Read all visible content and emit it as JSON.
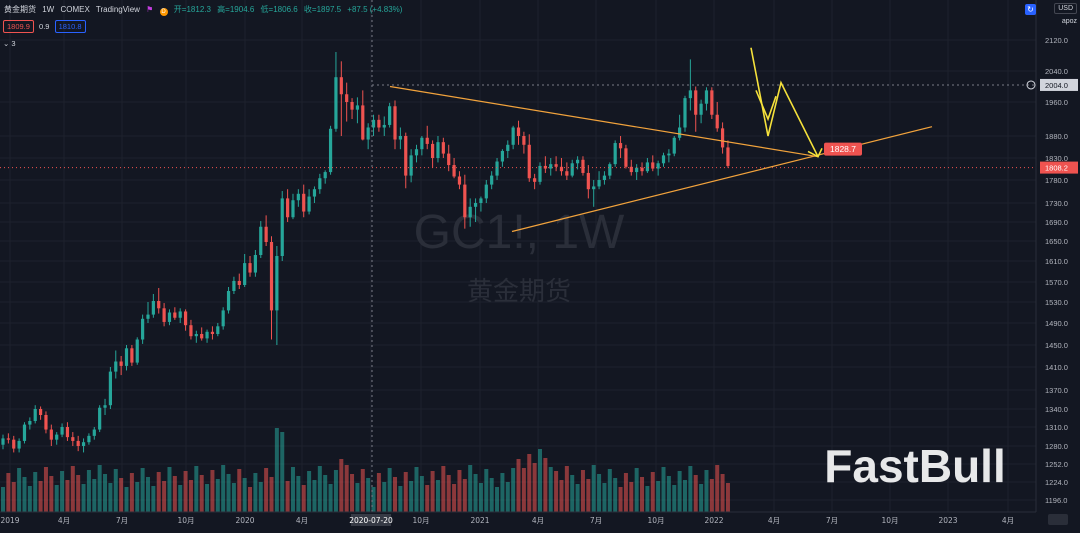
{
  "header": {
    "symbol": "黄金期货",
    "interval": "1W",
    "exchange": "COMEX",
    "source": "TradingView",
    "open_label": "开=1812.3",
    "high_label": "高=1904.6",
    "low_label": "低=1806.6",
    "close_label": "收=1897.5",
    "change_label": "+87.5 (+4.83%)",
    "bid": "1809.9",
    "spread": "0.9",
    "ask": "1810.8",
    "indicator_count": "3"
  },
  "top_right": {
    "currency": "USD",
    "scale_mode": "apoz"
  },
  "watermark": {
    "ticker": "GC1!, 1W",
    "name": "黄金期货"
  },
  "logo": "FastBull",
  "colors": {
    "background": "#131722",
    "up": "#26a69a",
    "down": "#ef5350",
    "trendline": "#f2a33c",
    "arrow": "#f5e13b",
    "axis_text": "#b2b5be"
  },
  "chart_data": {
    "type": "candlestick",
    "title": "",
    "price_axis_ticks": [
      2120.0,
      2040.0,
      1960.0,
      1880.0,
      1830.0,
      1780.0,
      1730.0,
      1690.0,
      1650.0,
      1610.0,
      1570.0,
      1530.0,
      1490.0,
      1450.0,
      1410.0,
      1370.0,
      1340.0,
      1310.0,
      1280.0,
      1252.0,
      1224.0,
      1196.0
    ],
    "price_axis_ticks_text": [
      "2120.0",
      "2040.0",
      "1960.0",
      "1880.0",
      "1830.0",
      "1780.0",
      "1730.0",
      "1690.0",
      "1650.0",
      "1610.0",
      "1570.0",
      "1530.0",
      "1490.0",
      "1450.0",
      "1410.0",
      "1370.0",
      "1340.0",
      "1310.0",
      "1280.0",
      "1252.0",
      "1224.0",
      "1196.0"
    ],
    "time_axis_labels": [
      "2019",
      "4月",
      "7月",
      "10月",
      "2020",
      "4月",
      "2020-07-20",
      "10月",
      "2021",
      "4月",
      "7月",
      "10月",
      "2022",
      "4月",
      "7月",
      "10月",
      "2023",
      "4月"
    ],
    "crosshair_date": "2020-07-20",
    "price_labels": {
      "dotted_line": "2004.0",
      "last_price": "1808.2",
      "target": "1828.7"
    },
    "ohlc_weekly_approx": [
      [
        1282,
        1298,
        1275,
        1292
      ],
      [
        1292,
        1300,
        1284,
        1290
      ],
      [
        1290,
        1296,
        1270,
        1276
      ],
      [
        1276,
        1292,
        1270,
        1288
      ],
      [
        1288,
        1318,
        1284,
        1314
      ],
      [
        1314,
        1326,
        1306,
        1320
      ],
      [
        1320,
        1346,
        1316,
        1340
      ],
      [
        1340,
        1344,
        1322,
        1330
      ],
      [
        1330,
        1336,
        1300,
        1306
      ],
      [
        1306,
        1314,
        1280,
        1290
      ],
      [
        1290,
        1302,
        1282,
        1298
      ],
      [
        1298,
        1316,
        1294,
        1310
      ],
      [
        1310,
        1318,
        1288,
        1294
      ],
      [
        1294,
        1302,
        1280,
        1288
      ],
      [
        1288,
        1296,
        1272,
        1280
      ],
      [
        1280,
        1292,
        1270,
        1286
      ],
      [
        1286,
        1300,
        1282,
        1296
      ],
      [
        1296,
        1310,
        1290,
        1306
      ],
      [
        1306,
        1346,
        1302,
        1342
      ],
      [
        1342,
        1356,
        1330,
        1346
      ],
      [
        1346,
        1410,
        1340,
        1402
      ],
      [
        1402,
        1440,
        1390,
        1420
      ],
      [
        1420,
        1430,
        1396,
        1412
      ],
      [
        1412,
        1450,
        1404,
        1444
      ],
      [
        1444,
        1450,
        1412,
        1418
      ],
      [
        1418,
        1464,
        1414,
        1460
      ],
      [
        1460,
        1506,
        1452,
        1498
      ],
      [
        1498,
        1530,
        1490,
        1506
      ],
      [
        1506,
        1546,
        1500,
        1532
      ],
      [
        1532,
        1558,
        1508,
        1518
      ],
      [
        1518,
        1528,
        1484,
        1492
      ],
      [
        1492,
        1516,
        1486,
        1510
      ],
      [
        1510,
        1520,
        1496,
        1500
      ],
      [
        1500,
        1518,
        1490,
        1512
      ],
      [
        1512,
        1516,
        1476,
        1486
      ],
      [
        1486,
        1496,
        1460,
        1466
      ],
      [
        1466,
        1476,
        1454,
        1470
      ],
      [
        1470,
        1482,
        1458,
        1462
      ],
      [
        1462,
        1478,
        1454,
        1474
      ],
      [
        1474,
        1484,
        1460,
        1470
      ],
      [
        1470,
        1490,
        1466,
        1484
      ],
      [
        1484,
        1520,
        1478,
        1514
      ],
      [
        1514,
        1560,
        1508,
        1552
      ],
      [
        1552,
        1580,
        1546,
        1572
      ],
      [
        1572,
        1586,
        1556,
        1564
      ],
      [
        1564,
        1624,
        1560,
        1606
      ],
      [
        1606,
        1620,
        1580,
        1588
      ],
      [
        1588,
        1632,
        1580,
        1622
      ],
      [
        1622,
        1692,
        1616,
        1680
      ],
      [
        1680,
        1704,
        1640,
        1648
      ],
      [
        1648,
        1660,
        1460,
        1514
      ],
      [
        1514,
        1640,
        1450,
        1620
      ],
      [
        1620,
        1756,
        1610,
        1740
      ],
      [
        1740,
        1760,
        1690,
        1700
      ],
      [
        1700,
        1750,
        1696,
        1736
      ],
      [
        1736,
        1760,
        1722,
        1750
      ],
      [
        1750,
        1770,
        1700,
        1712
      ],
      [
        1712,
        1760,
        1706,
        1744
      ],
      [
        1744,
        1766,
        1730,
        1760
      ],
      [
        1760,
        1794,
        1750,
        1784
      ],
      [
        1784,
        1802,
        1772,
        1798
      ],
      [
        1798,
        1904,
        1792,
        1897
      ],
      [
        1897,
        2089,
        1890,
        2024
      ],
      [
        2024,
        2065,
        1880,
        1980
      ],
      [
        1980,
        2010,
        1914,
        1960
      ],
      [
        1960,
        1970,
        1920,
        1942
      ],
      [
        1942,
        1972,
        1910,
        1952
      ],
      [
        1952,
        1990,
        1870,
        1872
      ],
      [
        1872,
        1910,
        1850,
        1900
      ],
      [
        1900,
        1930,
        1880,
        1918
      ],
      [
        1918,
        1930,
        1890,
        1900
      ],
      [
        1900,
        1926,
        1880,
        1906
      ],
      [
        1906,
        1958,
        1900,
        1950
      ],
      [
        1950,
        1964,
        1850,
        1872
      ],
      [
        1872,
        1900,
        1850,
        1880
      ],
      [
        1880,
        1888,
        1762,
        1790
      ],
      [
        1790,
        1850,
        1775,
        1836
      ],
      [
        1836,
        1860,
        1820,
        1850
      ],
      [
        1850,
        1880,
        1836,
        1876
      ],
      [
        1876,
        1904,
        1850,
        1862
      ],
      [
        1862,
        1870,
        1808,
        1830
      ],
      [
        1830,
        1880,
        1820,
        1866
      ],
      [
        1866,
        1876,
        1830,
        1840
      ],
      [
        1840,
        1860,
        1800,
        1814
      ],
      [
        1814,
        1830,
        1784,
        1788
      ],
      [
        1788,
        1800,
        1760,
        1770
      ],
      [
        1770,
        1792,
        1676,
        1700
      ],
      [
        1700,
        1740,
        1680,
        1722
      ],
      [
        1722,
        1740,
        1690,
        1730
      ],
      [
        1730,
        1744,
        1712,
        1740
      ],
      [
        1740,
        1780,
        1730,
        1770
      ],
      [
        1770,
        1800,
        1760,
        1790
      ],
      [
        1790,
        1830,
        1780,
        1822
      ],
      [
        1822,
        1850,
        1810,
        1846
      ],
      [
        1846,
        1870,
        1830,
        1860
      ],
      [
        1860,
        1904,
        1850,
        1900
      ],
      [
        1900,
        1916,
        1860,
        1880
      ],
      [
        1880,
        1890,
        1840,
        1860
      ],
      [
        1860,
        1884,
        1776,
        1784
      ],
      [
        1784,
        1794,
        1760,
        1776
      ],
      [
        1776,
        1820,
        1770,
        1812
      ],
      [
        1812,
        1834,
        1796,
        1806
      ],
      [
        1806,
        1830,
        1790,
        1816
      ],
      [
        1816,
        1834,
        1800,
        1810
      ],
      [
        1810,
        1830,
        1790,
        1800
      ],
      [
        1800,
        1820,
        1780,
        1790
      ],
      [
        1790,
        1826,
        1786,
        1818
      ],
      [
        1818,
        1834,
        1804,
        1826
      ],
      [
        1826,
        1834,
        1790,
        1796
      ],
      [
        1796,
        1814,
        1740,
        1760
      ],
      [
        1760,
        1780,
        1722,
        1766
      ],
      [
        1766,
        1800,
        1760,
        1780
      ],
      [
        1780,
        1800,
        1770,
        1790
      ],
      [
        1790,
        1820,
        1782,
        1816
      ],
      [
        1816,
        1870,
        1810,
        1864
      ],
      [
        1864,
        1880,
        1830,
        1852
      ],
      [
        1852,
        1860,
        1806,
        1810
      ],
      [
        1810,
        1826,
        1790,
        1798
      ],
      [
        1798,
        1816,
        1780,
        1808
      ],
      [
        1808,
        1820,
        1790,
        1800
      ],
      [
        1800,
        1830,
        1796,
        1820
      ],
      [
        1820,
        1836,
        1800,
        1806
      ],
      [
        1806,
        1824,
        1790,
        1818
      ],
      [
        1818,
        1842,
        1810,
        1836
      ],
      [
        1836,
        1850,
        1820,
        1840
      ],
      [
        1840,
        1880,
        1834,
        1876
      ],
      [
        1876,
        1930,
        1870,
        1900
      ],
      [
        1900,
        1976,
        1890,
        1970
      ],
      [
        1970,
        2070,
        1940,
        1990
      ],
      [
        1990,
        2000,
        1890,
        1930
      ],
      [
        1930,
        1966,
        1910,
        1956
      ],
      [
        1956,
        1998,
        1940,
        1990
      ],
      [
        1990,
        1998,
        1920,
        1930
      ],
      [
        1930,
        1960,
        1890,
        1898
      ],
      [
        1898,
        1912,
        1840,
        1854
      ],
      [
        1854,
        1870,
        1808,
        1812
      ]
    ]
  }
}
